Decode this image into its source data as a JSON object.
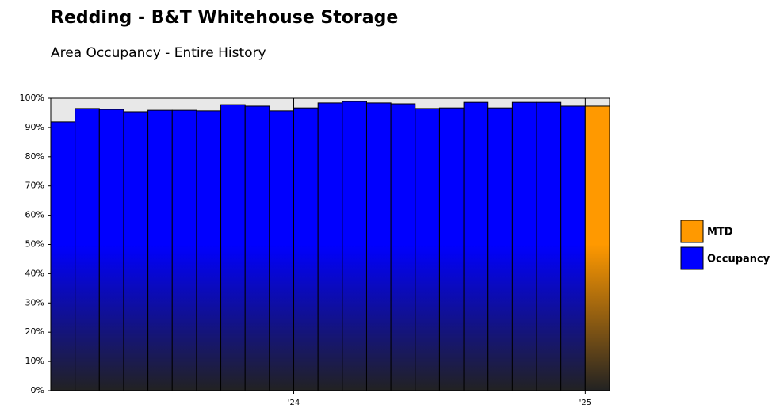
{
  "chart_data": {
    "type": "bar",
    "title": "Redding - B&T Whitehouse Storage",
    "subtitle": "Area Occupancy - Entire History",
    "categories": [
      null,
      null,
      null,
      null,
      null,
      null,
      null,
      null,
      null,
      null,
      "'24",
      null,
      null,
      null,
      null,
      null,
      null,
      null,
      null,
      null,
      null,
      null,
      "'25"
    ],
    "series": [
      {
        "name": "MTD",
        "color": "#ff9900",
        "values": [
          null,
          null,
          null,
          null,
          null,
          null,
          null,
          null,
          null,
          null,
          null,
          null,
          null,
          null,
          null,
          null,
          null,
          null,
          null,
          null,
          null,
          null,
          97.3
        ]
      },
      {
        "name": "Occupancy",
        "color": "#0000ff",
        "values": [
          91.9,
          96.5,
          96.2,
          95.4,
          95.9,
          95.9,
          95.7,
          97.8,
          97.3,
          95.7,
          96.7,
          98.4,
          98.9,
          98.4,
          98.1,
          96.5,
          96.7,
          98.6,
          96.7,
          98.6,
          98.6,
          97.3,
          null
        ]
      }
    ],
    "ylim": [
      0,
      100
    ],
    "yticks": [
      {
        "value": 0,
        "label": "0%"
      },
      {
        "value": 10,
        "label": "10%"
      },
      {
        "value": 20,
        "label": "20%"
      },
      {
        "value": 30,
        "label": "30%"
      },
      {
        "value": 40,
        "label": "40%"
      },
      {
        "value": 50,
        "label": "50%"
      },
      {
        "value": 60,
        "label": "60%"
      },
      {
        "value": 70,
        "label": "70%"
      },
      {
        "value": 80,
        "label": "80%"
      },
      {
        "value": 90,
        "label": "90%"
      },
      {
        "value": 100,
        "label": "100%"
      }
    ]
  }
}
